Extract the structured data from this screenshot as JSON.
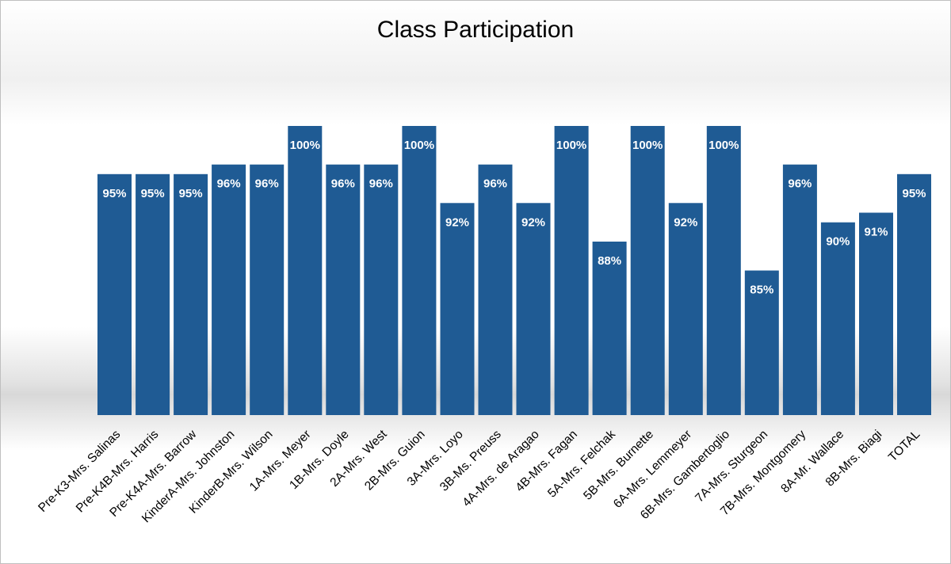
{
  "chart_data": {
    "type": "bar",
    "title": "Class Participation",
    "categories": [
      "Pre-K3-Mrs. Salinas",
      "Pre-K4B-Mrs. Harris",
      "Pre-K4A-Mrs. Barrow",
      "KinderA-Mrs. Johnston",
      "KinderB-Mrs. Wilson",
      "1A-Mrs. Meyer",
      "1B-Mrs. Doyle",
      "2A-Mrs. West",
      "2B-Mrs. Guion",
      "3A-Mrs. Loyo",
      "3B-Ms. Preuss",
      "4A-Mrs. de Aragao",
      "4B-Mrs. Fagan",
      "5A-Mrs. Felchak",
      "5B-Mrs. Burnette",
      "6A-Mrs. Lemmeyer",
      "6B-Mrs. Gambertoglio",
      "7A-Mrs. Sturgeon",
      "7B-Mrs. Montgomery",
      "8A-Mr. Wallace",
      "8B-Mrs. Biagi",
      "TOTAL"
    ],
    "values": [
      95,
      95,
      95,
      96,
      96,
      100,
      96,
      96,
      100,
      92,
      96,
      92,
      100,
      88,
      100,
      92,
      100,
      85,
      96,
      90,
      91,
      95
    ],
    "data_labels": [
      "95%",
      "95%",
      "95%",
      "96%",
      "96%",
      "100%",
      "96%",
      "96%",
      "100%",
      "92%",
      "96%",
      "92%",
      "100%",
      "88%",
      "100%",
      "92%",
      "100%",
      "85%",
      "96%",
      "90%",
      "91%",
      "95%"
    ],
    "xlabel": "",
    "ylabel": "",
    "ylim": [
      70,
      100
    ],
    "grid": false,
    "legend": "none",
    "bar_color": "#1f5b94",
    "label_color": "#ffffff"
  }
}
